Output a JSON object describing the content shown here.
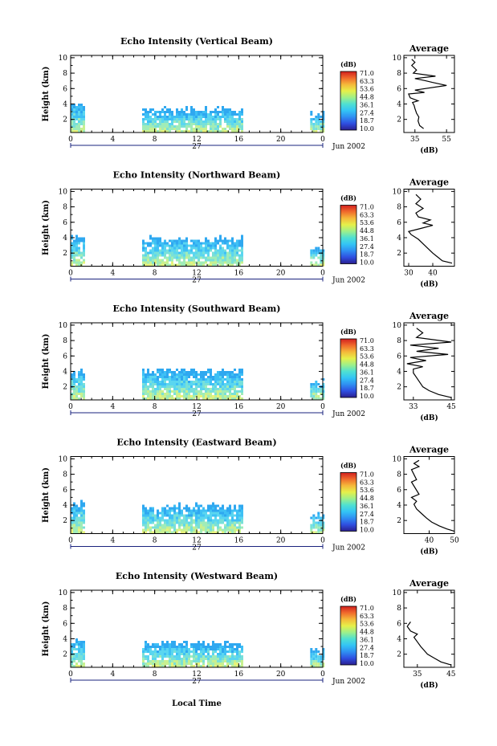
{
  "figure": {
    "xlabel": "Local Time",
    "date_label": "Jun 2002",
    "day_label": "27",
    "ylabel": "Height (km)",
    "colorbar_unit": "(dB)",
    "profile_title": "Average",
    "profile_xlabel": "(dB)"
  },
  "colors": {
    "scale": [
      "#2b1f8f",
      "#2f4ee0",
      "#2f8ff2",
      "#33c4f5",
      "#4fe0d2",
      "#9ef08a",
      "#e6f04a",
      "#f5b83a",
      "#f06a2c",
      "#d21f1f"
    ],
    "cell_palette": [
      "#2fa8f0",
      "#3ec0f5",
      "#5ad6f0",
      "#78e0d8",
      "#a0ecb8",
      "#c8f090",
      "#e8f27a"
    ]
  },
  "chart_data": [
    {
      "type": "heatmap",
      "title": "Echo Intensity (Vertical Beam)",
      "x_ticks": [
        "0",
        "4",
        "8",
        "12",
        "16",
        "20",
        "0"
      ],
      "y_ticks": [
        "2",
        "4",
        "6",
        "8",
        "10"
      ],
      "xlim": [
        0,
        24
      ],
      "ylim": [
        0.3,
        10.3
      ],
      "colorbar": {
        "label": "(dB)",
        "ticks": [
          "71.0",
          "63.3",
          "53.6",
          "44.8",
          "36.1",
          "27.4",
          "18.7",
          "10.0"
        ],
        "range": [
          10.0,
          71.0
        ]
      },
      "data_blocks": [
        {
          "x": [
            0,
            1.2
          ],
          "top_km": 4.2
        },
        {
          "x": [
            6.8,
            16.3
          ],
          "top_km": 3.4
        },
        {
          "x": [
            22.8,
            24
          ],
          "top_km": 2.8
        }
      ],
      "profile": {
        "xticks": [
          "35",
          "55"
        ],
        "xlim": [
          28,
          60
        ],
        "yticks": [
          "2",
          "4",
          "6",
          "8",
          "10"
        ],
        "points": [
          [
            40.5,
            0.8
          ],
          [
            38,
            1.2
          ],
          [
            37,
            1.8
          ],
          [
            37.5,
            2.3
          ],
          [
            36,
            2.8
          ],
          [
            35,
            3.4
          ],
          [
            34.5,
            3.8
          ],
          [
            33.5,
            4.2
          ],
          [
            37,
            4.4
          ],
          [
            32,
            4.8
          ],
          [
            31,
            5.3
          ],
          [
            41,
            5.5
          ],
          [
            35,
            5.8
          ],
          [
            55,
            6.4
          ],
          [
            46,
            6.8
          ],
          [
            42,
            7.0
          ],
          [
            35,
            7.3
          ],
          [
            48,
            7.6
          ],
          [
            34,
            8.0
          ],
          [
            36,
            8.4
          ],
          [
            33,
            9.0
          ],
          [
            35,
            9.4
          ],
          [
            33,
            9.8
          ]
        ]
      }
    },
    {
      "type": "heatmap",
      "title": "Echo Intensity (Northward Beam)",
      "x_ticks": [
        "0",
        "4",
        "8",
        "12",
        "16",
        "20",
        "0"
      ],
      "y_ticks": [
        "2",
        "4",
        "6",
        "8",
        "10"
      ],
      "xlim": [
        0,
        24
      ],
      "ylim": [
        0.3,
        10.3
      ],
      "colorbar": {
        "label": "(dB)",
        "ticks": [
          "71.0",
          "63.3",
          "53.6",
          "44.8",
          "36.1",
          "27.4",
          "18.7",
          "10.0"
        ],
        "range": [
          10.0,
          71.0
        ]
      },
      "data_blocks": [
        {
          "x": [
            0,
            1.2
          ],
          "top_km": 4.2
        },
        {
          "x": [
            6.8,
            16.3
          ],
          "top_km": 4.0
        },
        {
          "x": [
            22.8,
            24
          ],
          "top_km": 2.8
        }
      ],
      "profile": {
        "xticks": [
          "30",
          "40"
        ],
        "xlim": [
          28,
          49
        ],
        "yticks": [
          "2",
          "4",
          "6",
          "8",
          "10"
        ],
        "points": [
          [
            48,
            0.7
          ],
          [
            44,
            1.0
          ],
          [
            42,
            1.5
          ],
          [
            40,
            2.0
          ],
          [
            38,
            2.6
          ],
          [
            36,
            3.2
          ],
          [
            34,
            3.8
          ],
          [
            31,
            4.4
          ],
          [
            30,
            4.8
          ],
          [
            35,
            5.2
          ],
          [
            40,
            5.6
          ],
          [
            36,
            5.9
          ],
          [
            39,
            6.3
          ],
          [
            34,
            6.7
          ],
          [
            33,
            7.2
          ],
          [
            36,
            7.8
          ],
          [
            33,
            8.4
          ],
          [
            35,
            9.0
          ],
          [
            33,
            9.6
          ]
        ]
      }
    },
    {
      "type": "heatmap",
      "title": "Echo Intensity (Southward Beam)",
      "x_ticks": [
        "0",
        "4",
        "8",
        "12",
        "16",
        "20",
        "0"
      ],
      "y_ticks": [
        "2",
        "4",
        "6",
        "8",
        "10"
      ],
      "xlim": [
        0,
        24
      ],
      "ylim": [
        0.3,
        10.3
      ],
      "colorbar": {
        "label": "(dB)",
        "ticks": [
          "71.0",
          "63.3",
          "53.6",
          "44.8",
          "36.1",
          "27.4",
          "18.7",
          "10.0"
        ],
        "range": [
          10.0,
          71.0
        ]
      },
      "data_blocks": [
        {
          "x": [
            0,
            1.2
          ],
          "top_km": 4.3
        },
        {
          "x": [
            6.8,
            16.3
          ],
          "top_km": 4.2
        },
        {
          "x": [
            22.8,
            24
          ],
          "top_km": 2.9
        }
      ],
      "profile": {
        "xticks": [
          "33",
          "45"
        ],
        "xlim": [
          30,
          46
        ],
        "yticks": [
          "2",
          "4",
          "6",
          "8",
          "10"
        ],
        "points": [
          [
            45,
            0.6
          ],
          [
            41,
            1.0
          ],
          [
            38,
            1.5
          ],
          [
            36,
            2.0
          ],
          [
            35,
            2.6
          ],
          [
            34,
            3.2
          ],
          [
            33,
            3.8
          ],
          [
            33,
            4.3
          ],
          [
            36,
            4.6
          ],
          [
            31,
            5.0
          ],
          [
            37,
            5.4
          ],
          [
            32,
            5.8
          ],
          [
            44,
            6.2
          ],
          [
            34,
            6.6
          ],
          [
            41,
            7.0
          ],
          [
            32,
            7.4
          ],
          [
            45,
            7.8
          ],
          [
            34,
            8.4
          ],
          [
            36,
            9.0
          ],
          [
            34,
            9.6
          ]
        ]
      }
    },
    {
      "type": "heatmap",
      "title": "Echo Intensity (Eastward Beam)",
      "x_ticks": [
        "0",
        "4",
        "8",
        "12",
        "16",
        "20",
        "0"
      ],
      "y_ticks": [
        "2",
        "4",
        "6",
        "8",
        "10"
      ],
      "xlim": [
        0,
        24
      ],
      "ylim": [
        0.3,
        10.3
      ],
      "colorbar": {
        "label": "(dB)",
        "ticks": [
          "71.0",
          "63.3",
          "53.6",
          "44.8",
          "36.1",
          "27.4",
          "18.7",
          "10.0"
        ],
        "range": [
          10.0,
          71.0
        ]
      },
      "data_blocks": [
        {
          "x": [
            0,
            1.2
          ],
          "top_km": 4.3
        },
        {
          "x": [
            6.8,
            16.3
          ],
          "top_km": 4.0
        },
        {
          "x": [
            22.8,
            24
          ],
          "top_km": 2.9
        }
      ],
      "profile": {
        "xticks": [
          "40",
          "50"
        ],
        "xlim": [
          30,
          50
        ],
        "yticks": [
          "2",
          "4",
          "6",
          "8",
          "10"
        ],
        "points": [
          [
            50,
            0.6
          ],
          [
            47,
            0.9
          ],
          [
            44,
            1.3
          ],
          [
            41,
            1.8
          ],
          [
            39,
            2.3
          ],
          [
            37,
            2.9
          ],
          [
            35,
            3.5
          ],
          [
            34,
            4.1
          ],
          [
            35,
            4.5
          ],
          [
            33,
            5.0
          ],
          [
            36,
            5.4
          ],
          [
            33,
            7.0
          ],
          [
            35,
            7.3
          ],
          [
            33,
            8.6
          ],
          [
            36,
            9.0
          ],
          [
            34,
            9.4
          ],
          [
            36,
            9.8
          ]
        ]
      }
    },
    {
      "type": "heatmap",
      "title": "Echo Intensity (Westward Beam)",
      "x_ticks": [
        "0",
        "4",
        "8",
        "12",
        "16",
        "20",
        "0"
      ],
      "y_ticks": [
        "2",
        "4",
        "6",
        "8",
        "10"
      ],
      "xlim": [
        0,
        24
      ],
      "ylim": [
        0.3,
        10.3
      ],
      "colorbar": {
        "label": "(dB)",
        "ticks": [
          "71.0",
          "63.3",
          "53.6",
          "44.8",
          "36.1",
          "27.4",
          "18.7",
          "10.0"
        ],
        "range": [
          10.0,
          71.0
        ]
      },
      "data_blocks": [
        {
          "x": [
            0,
            1.2
          ],
          "top_km": 4.0
        },
        {
          "x": [
            6.8,
            16.3
          ],
          "top_km": 3.6
        },
        {
          "x": [
            22.8,
            24
          ],
          "top_km": 2.8
        }
      ],
      "profile": {
        "xticks": [
          "35",
          "45"
        ],
        "xlim": [
          31,
          46
        ],
        "yticks": [
          "2",
          "4",
          "6",
          "8",
          "10"
        ],
        "points": [
          [
            45,
            0.6
          ],
          [
            42,
            1.0
          ],
          [
            40,
            1.5
          ],
          [
            38,
            2.0
          ],
          [
            37,
            2.5
          ],
          [
            36,
            3.0
          ],
          [
            35,
            3.6
          ],
          [
            34,
            4.2
          ],
          [
            35,
            4.6
          ],
          [
            33,
            5.0
          ],
          [
            32,
            5.6
          ],
          [
            33,
            6.2
          ]
        ]
      }
    }
  ]
}
